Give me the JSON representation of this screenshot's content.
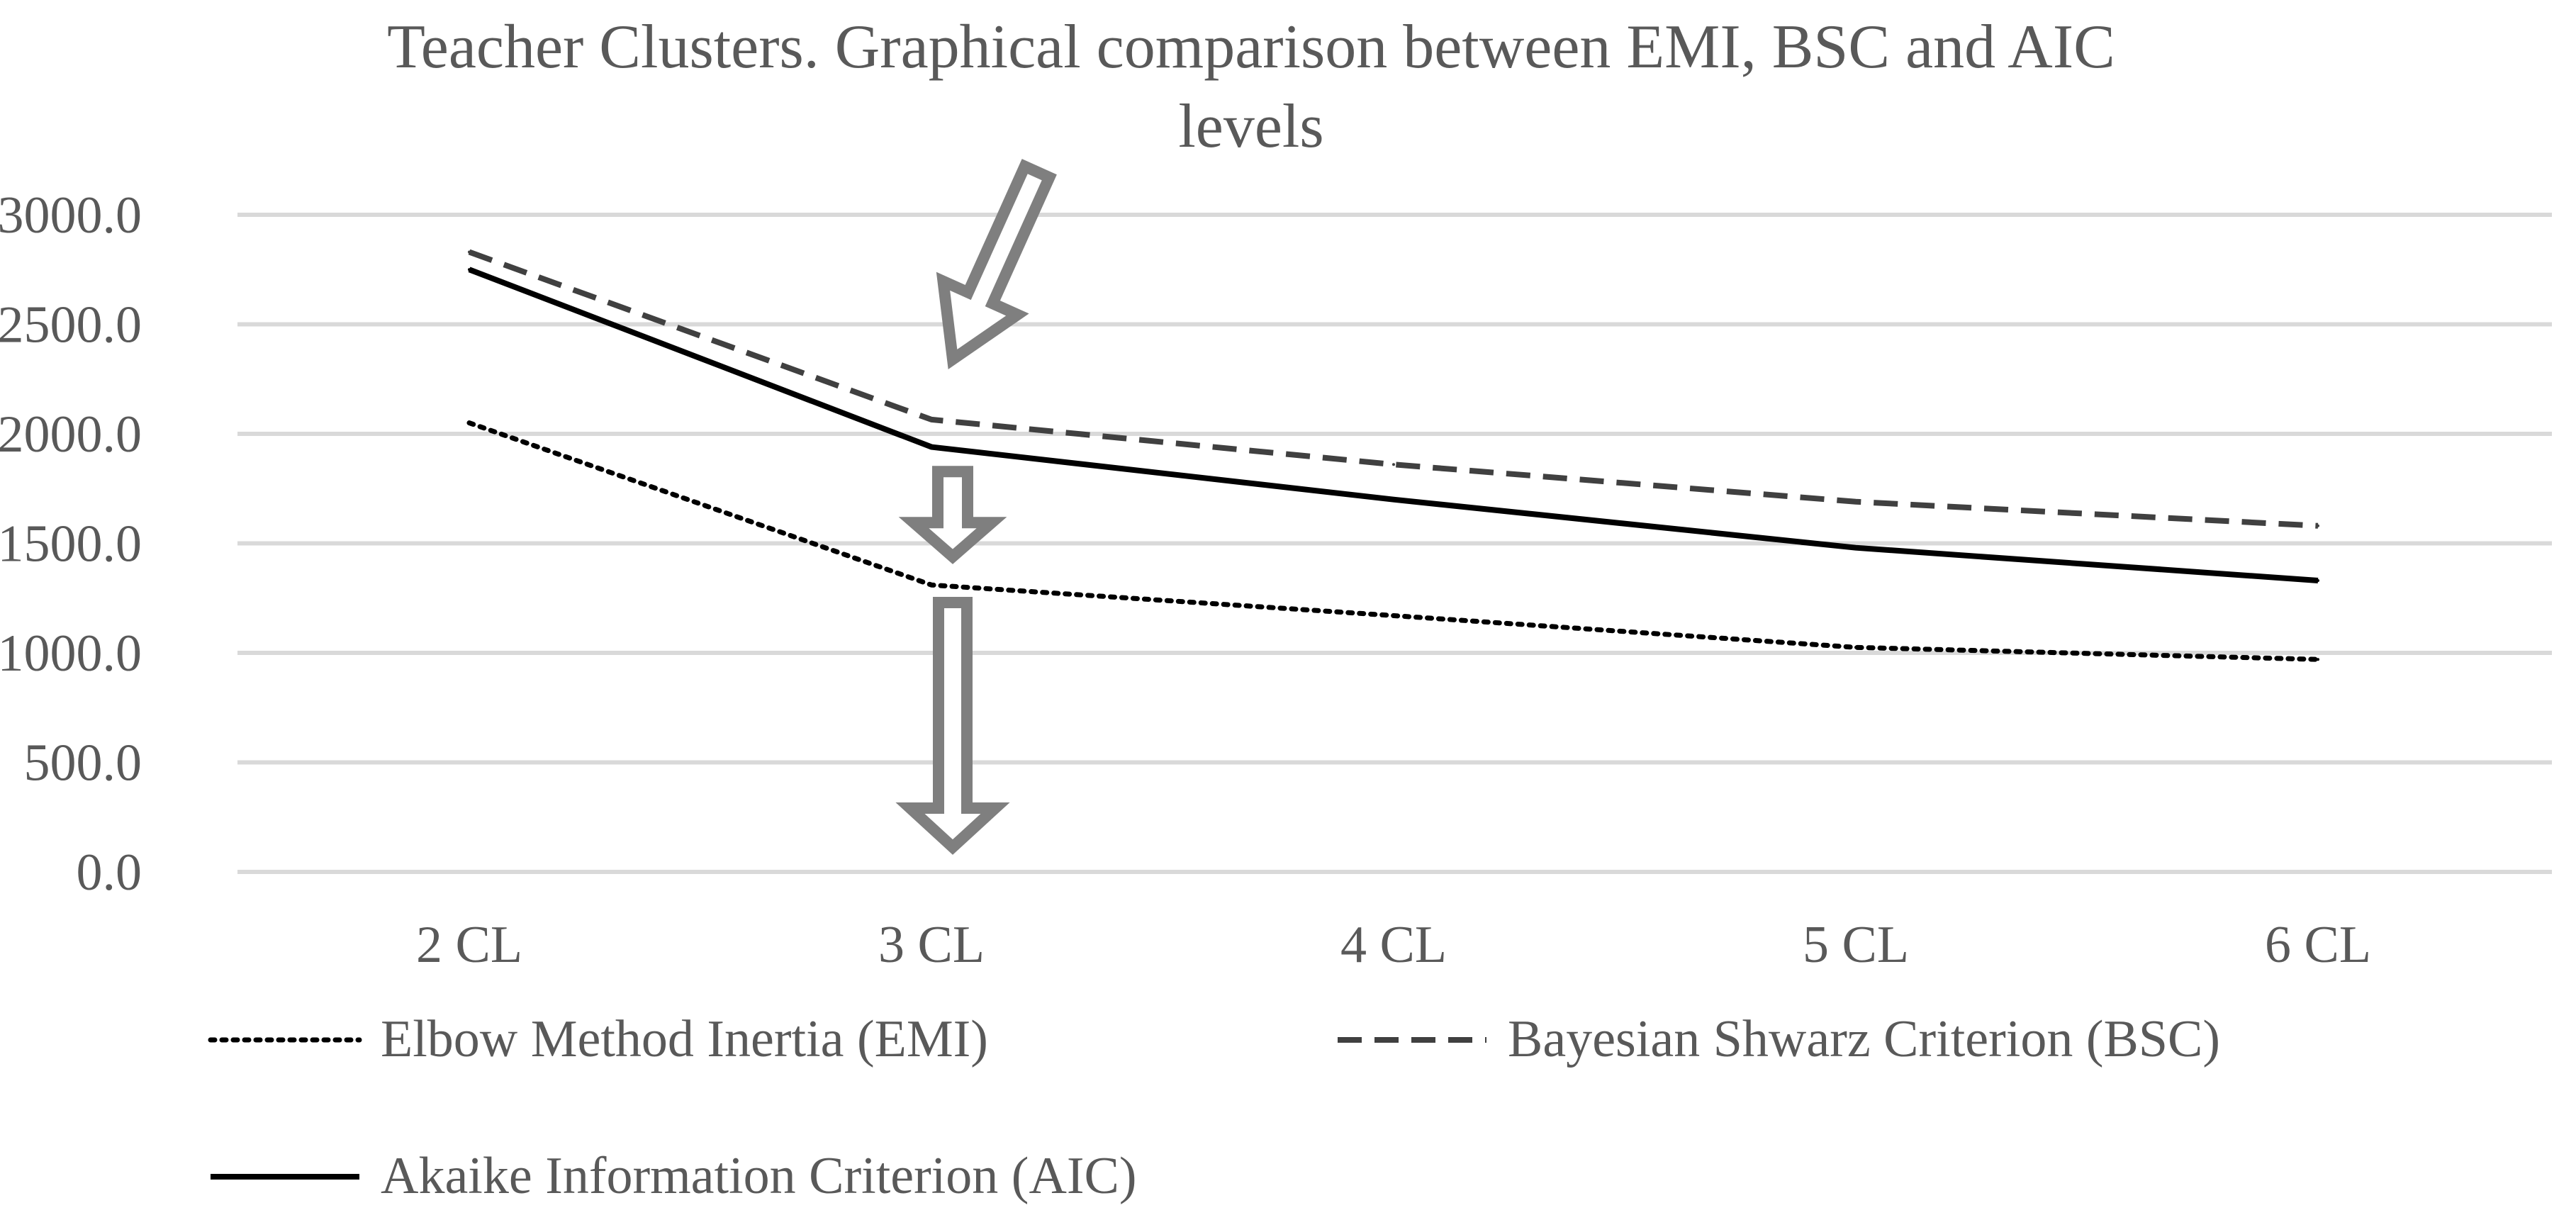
{
  "chart_data": {
    "type": "line",
    "title": "Teacher Clusters. Graphical comparison between EMI, BSC and AIC levels",
    "title_lines": [
      "Teacher Clusters. Graphical comparison between EMI, BSC and AIC",
      "levels"
    ],
    "categories": [
      "2 CL",
      "3 CL",
      "4 CL",
      "5 CL",
      "6 CL"
    ],
    "yticks": [
      "0.0",
      "500.0",
      "1000.0",
      "1500.0",
      "2000.0",
      "2500.0",
      "3000.0"
    ],
    "ylim": [
      0,
      3000
    ],
    "xlabel": "",
    "ylabel": "",
    "grid": true,
    "legend_position": "bottom",
    "series": [
      {
        "name": "Elbow Method Inertia (EMI)",
        "values": [
          2050,
          1310,
          1170,
          1025,
          970
        ],
        "color": "#000000",
        "dash": "dotted"
      },
      {
        "name": "Bayesian Shwarz Criterion (BSC)",
        "values": [
          2830,
          2065,
          1860,
          1690,
          1580
        ],
        "color": "#404040",
        "dash": "dashed"
      },
      {
        "name": "Akaike Information Criterion (AIC)",
        "values": [
          2750,
          1940,
          1700,
          1480,
          1330
        ],
        "color": "#000000",
        "dash": "solid"
      }
    ],
    "annotations": [
      {
        "type": "arrow",
        "direction": "down-left",
        "points_to": "3 CL",
        "target_series": "Bayesian Shwarz Criterion (BSC)"
      },
      {
        "type": "arrow",
        "direction": "down",
        "points_to": "3 CL",
        "target_series": "Elbow Method Inertia (EMI)"
      },
      {
        "type": "arrow",
        "direction": "down",
        "points_to": "3 CL",
        "target_series": "x-axis"
      }
    ],
    "colors": {
      "text": "#595959",
      "gridline": "#d9d9d9",
      "arrow_outline": "#7f7f7f"
    }
  }
}
